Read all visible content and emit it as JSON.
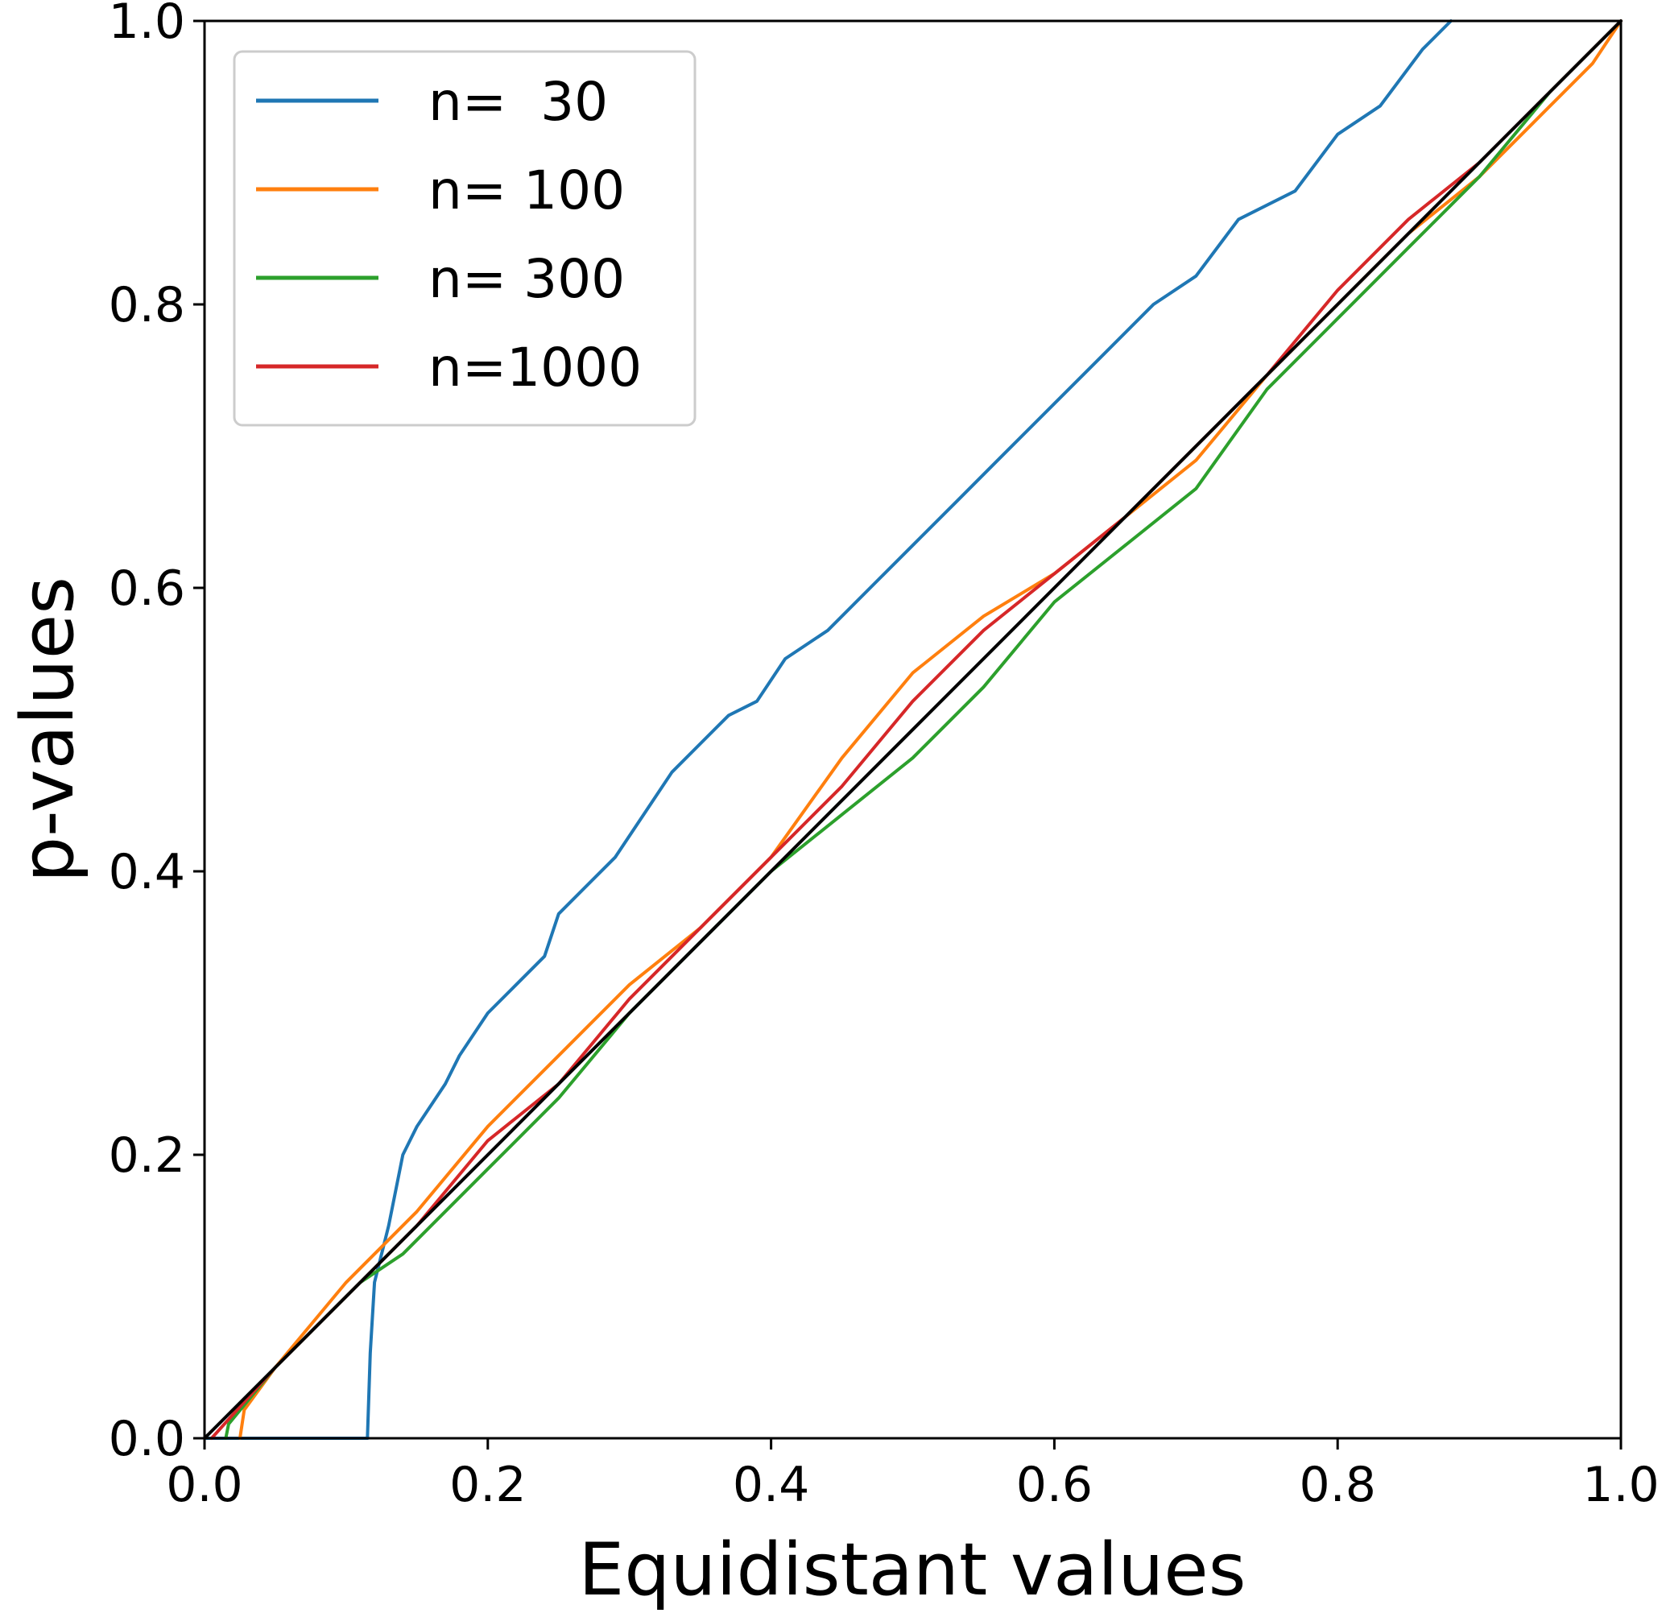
{
  "chart_data": {
    "type": "line",
    "xlabel": "Equidistant values",
    "ylabel": "p-values",
    "xlim": [
      0.0,
      1.0
    ],
    "ylim": [
      0.0,
      1.0
    ],
    "xticks": [
      "0.0",
      "0.2",
      "0.4",
      "0.6",
      "0.8",
      "1.0"
    ],
    "yticks": [
      "0.0",
      "0.2",
      "0.4",
      "0.6",
      "0.8",
      "1.0"
    ],
    "grid": false,
    "legend_position": "top-left",
    "series": [
      {
        "name": "n=  30",
        "color": "#1f77b4",
        "points": [
          [
            0.0,
            0.0
          ],
          [
            0.115,
            0.0
          ],
          [
            0.117,
            0.06
          ],
          [
            0.12,
            0.11
          ],
          [
            0.13,
            0.15
          ],
          [
            0.14,
            0.2
          ],
          [
            0.15,
            0.22
          ],
          [
            0.17,
            0.25
          ],
          [
            0.18,
            0.27
          ],
          [
            0.2,
            0.3
          ],
          [
            0.22,
            0.32
          ],
          [
            0.24,
            0.34
          ],
          [
            0.25,
            0.37
          ],
          [
            0.27,
            0.39
          ],
          [
            0.29,
            0.41
          ],
          [
            0.31,
            0.44
          ],
          [
            0.33,
            0.47
          ],
          [
            0.35,
            0.49
          ],
          [
            0.37,
            0.51
          ],
          [
            0.39,
            0.52
          ],
          [
            0.41,
            0.55
          ],
          [
            0.44,
            0.57
          ],
          [
            0.47,
            0.6
          ],
          [
            0.5,
            0.63
          ],
          [
            0.53,
            0.66
          ],
          [
            0.56,
            0.69
          ],
          [
            0.6,
            0.73
          ],
          [
            0.63,
            0.76
          ],
          [
            0.67,
            0.8
          ],
          [
            0.7,
            0.82
          ],
          [
            0.73,
            0.86
          ],
          [
            0.77,
            0.88
          ],
          [
            0.8,
            0.92
          ],
          [
            0.83,
            0.94
          ],
          [
            0.86,
            0.98
          ],
          [
            0.88,
            1.0
          ]
        ]
      },
      {
        "name": "n= 100",
        "color": "#ff7f0e",
        "points": [
          [
            0.025,
            0.0
          ],
          [
            0.028,
            0.02
          ],
          [
            0.05,
            0.05
          ],
          [
            0.1,
            0.11
          ],
          [
            0.15,
            0.16
          ],
          [
            0.2,
            0.22
          ],
          [
            0.25,
            0.27
          ],
          [
            0.3,
            0.32
          ],
          [
            0.35,
            0.36
          ],
          [
            0.4,
            0.41
          ],
          [
            0.45,
            0.48
          ],
          [
            0.5,
            0.54
          ],
          [
            0.55,
            0.58
          ],
          [
            0.6,
            0.61
          ],
          [
            0.65,
            0.65
          ],
          [
            0.7,
            0.69
          ],
          [
            0.75,
            0.75
          ],
          [
            0.8,
            0.8
          ],
          [
            0.85,
            0.85
          ],
          [
            0.9,
            0.89
          ],
          [
            0.95,
            0.94
          ],
          [
            0.98,
            0.97
          ],
          [
            1.0,
            1.0
          ]
        ]
      },
      {
        "name": "n= 300",
        "color": "#2ca02c",
        "points": [
          [
            0.015,
            0.0
          ],
          [
            0.017,
            0.01
          ],
          [
            0.05,
            0.05
          ],
          [
            0.08,
            0.08
          ],
          [
            0.11,
            0.11
          ],
          [
            0.14,
            0.13
          ],
          [
            0.18,
            0.17
          ],
          [
            0.2,
            0.19
          ],
          [
            0.25,
            0.24
          ],
          [
            0.3,
            0.3
          ],
          [
            0.35,
            0.35
          ],
          [
            0.4,
            0.4
          ],
          [
            0.45,
            0.44
          ],
          [
            0.5,
            0.48
          ],
          [
            0.55,
            0.53
          ],
          [
            0.6,
            0.59
          ],
          [
            0.65,
            0.63
          ],
          [
            0.7,
            0.67
          ],
          [
            0.75,
            0.74
          ],
          [
            0.8,
            0.79
          ],
          [
            0.85,
            0.84
          ],
          [
            0.9,
            0.89
          ],
          [
            0.95,
            0.95
          ],
          [
            1.0,
            1.0
          ]
        ]
      },
      {
        "name": "n=1000",
        "color": "#d62728",
        "points": [
          [
            0.005,
            0.0
          ],
          [
            0.05,
            0.05
          ],
          [
            0.1,
            0.1
          ],
          [
            0.15,
            0.15
          ],
          [
            0.2,
            0.21
          ],
          [
            0.25,
            0.25
          ],
          [
            0.3,
            0.31
          ],
          [
            0.35,
            0.36
          ],
          [
            0.4,
            0.41
          ],
          [
            0.45,
            0.46
          ],
          [
            0.5,
            0.52
          ],
          [
            0.55,
            0.57
          ],
          [
            0.6,
            0.61
          ],
          [
            0.65,
            0.65
          ],
          [
            0.7,
            0.7
          ],
          [
            0.75,
            0.75
          ],
          [
            0.8,
            0.81
          ],
          [
            0.85,
            0.86
          ],
          [
            0.9,
            0.9
          ],
          [
            0.95,
            0.95
          ],
          [
            1.0,
            1.0
          ]
        ]
      },
      {
        "name": "",
        "color": "#000000",
        "points": [
          [
            0.0,
            0.0
          ],
          [
            1.0,
            1.0
          ]
        ]
      }
    ]
  }
}
